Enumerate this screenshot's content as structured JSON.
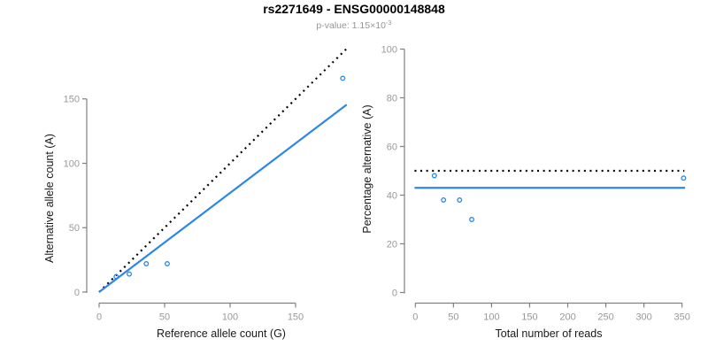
{
  "title": "rs2271649 - ENSG00000148848",
  "subtitle": {
    "text": "p-value: 1.15×10",
    "exponent": "-3"
  },
  "colors": {
    "accent_blue": "#2b87e6",
    "identity_black": "#000000",
    "axis_line": "#808080",
    "tick_label": "#999999",
    "axis_label": "#1a1a1a",
    "subtitle_gray": "#969696"
  },
  "chart_data": [
    {
      "type": "scatter",
      "name": "allele-counts",
      "xlabel": "Reference allele count (G)",
      "ylabel": "Alternative allele count (A)",
      "xlim": [
        0,
        190
      ],
      "ylim": [
        0,
        190
      ],
      "xticks": [
        0,
        50,
        100,
        150
      ],
      "yticks": [
        0,
        50,
        100,
        150
      ],
      "marker": "open-circle",
      "points": [
        [
          13,
          12
        ],
        [
          23,
          14
        ],
        [
          36,
          22
        ],
        [
          52,
          22
        ],
        [
          186,
          166
        ]
      ],
      "lines": [
        {
          "name": "identity",
          "style": "dotted",
          "color": "#000000",
          "from": [
            0,
            0
          ],
          "to": [
            189,
            189
          ]
        },
        {
          "name": "fit",
          "style": "solid",
          "color": "#2b87e6",
          "from": [
            0,
            0
          ],
          "to": [
            189,
            145.5
          ]
        }
      ]
    },
    {
      "type": "scatter",
      "name": "percentage-alternative",
      "xlabel": "Total number of reads",
      "ylabel": "Percentage alternative (A)",
      "xlim": [
        0,
        355
      ],
      "ylim": [
        0,
        100
      ],
      "xticks": [
        0,
        50,
        100,
        150,
        200,
        250,
        300,
        350
      ],
      "yticks": [
        0,
        20,
        40,
        60,
        80,
        100
      ],
      "marker": "open-circle",
      "points": [
        [
          25,
          48
        ],
        [
          37,
          38
        ],
        [
          58,
          38
        ],
        [
          74,
          30
        ],
        [
          352,
          47
        ]
      ],
      "lines": [
        {
          "name": "expected-50pct",
          "style": "dotted",
          "color": "#000000",
          "from": [
            -1,
            50
          ],
          "to": [
            353,
            50
          ]
        },
        {
          "name": "observed-mean",
          "style": "solid",
          "color": "#2b87e6",
          "from": [
            -1,
            43
          ],
          "to": [
            354,
            43
          ]
        }
      ]
    }
  ]
}
